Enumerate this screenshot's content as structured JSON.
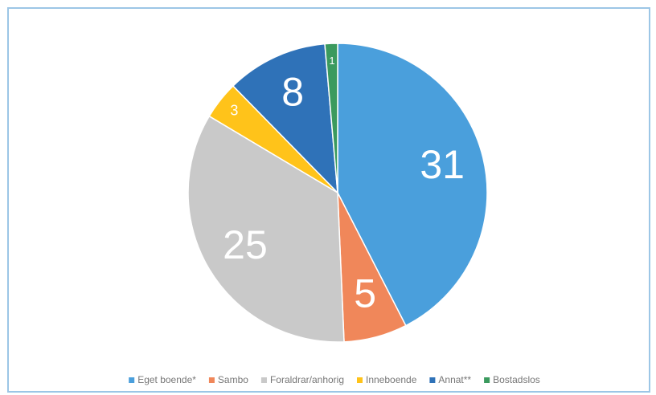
{
  "chart_data": {
    "type": "pie",
    "categories": [
      "Eget boende*",
      "Sambo",
      "Foraldrar/anhorig",
      "Inneboende",
      "Annat**",
      "Bostadslos"
    ],
    "values": [
      31,
      5,
      25,
      3,
      8,
      1
    ],
    "colors": [
      "#4a9fdc",
      "#f0875a",
      "#c9c9c9",
      "#ffc31a",
      "#2f72b8",
      "#3b9a5e"
    ],
    "legend": "bottom"
  }
}
